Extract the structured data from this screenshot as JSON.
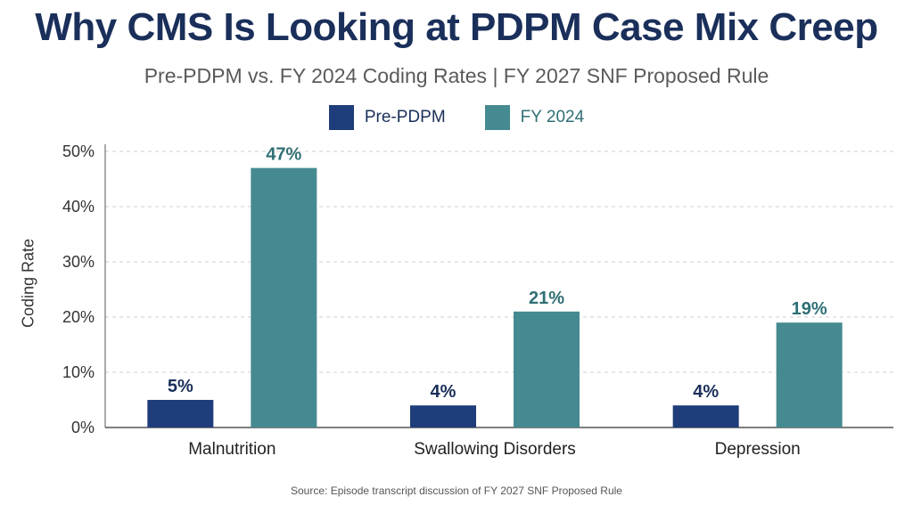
{
  "title": "Why CMS Is Looking at PDPM Case Mix Creep",
  "subtitle": "Pre-PDPM vs. FY 2024 Coding Rates | FY 2027 SNF Proposed Rule",
  "source": "Source: Episode transcript discussion of FY 2027 SNF Proposed Rule",
  "chart_data": {
    "type": "bar",
    "title": "Why CMS Is Looking at PDPM Case Mix Creep",
    "subtitle": "Pre-PDPM vs. FY 2024 Coding Rates | FY 2027 SNF Proposed Rule",
    "xlabel": "",
    "ylabel": "Coding Rate",
    "categories": [
      "Malnutrition",
      "Swallowing Disorders",
      "Depression"
    ],
    "series": [
      {
        "name": "Pre-PDPM",
        "values": [
          5,
          4,
          4
        ],
        "labels": [
          "5%",
          "4%",
          "4%"
        ],
        "color": "#1f3d7a",
        "label_color": "#1a2f5a"
      },
      {
        "name": "FY 2024",
        "values": [
          47,
          21,
          19
        ],
        "labels": [
          "47%",
          "21%",
          "19%"
        ],
        "color": "#458a90",
        "label_color": "#2f6f74"
      }
    ],
    "ylim": [
      0,
      50
    ],
    "yticks": [
      "0%",
      "10%",
      "20%",
      "30%",
      "40%",
      "50%"
    ],
    "grid": true,
    "legend": "top-center"
  }
}
